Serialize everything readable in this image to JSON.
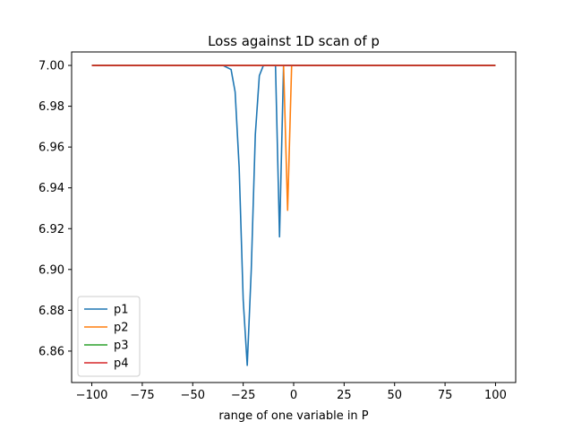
{
  "chart_data": {
    "type": "line",
    "title": "Loss against 1D scan of p",
    "xlabel": "range of one variable in P",
    "ylabel": "",
    "xlim": [
      -110,
      110
    ],
    "ylim": [
      6.8446,
      7.0066
    ],
    "xticks": [
      -100,
      -75,
      -50,
      -25,
      0,
      25,
      50,
      75,
      100
    ],
    "xtick_labels": [
      "−100",
      "−75",
      "−50",
      "−25",
      "0",
      "25",
      "50",
      "75",
      "100"
    ],
    "yticks": [
      6.86,
      6.88,
      6.9,
      6.92,
      6.94,
      6.96,
      6.98,
      7.0
    ],
    "ytick_labels": [
      "6.86",
      "6.88",
      "6.90",
      "6.92",
      "6.94",
      "6.96",
      "6.98",
      "7.00"
    ],
    "grid": false,
    "legend_position": "bottom-left",
    "series": [
      {
        "name": "p1",
        "color": "#1f77b4",
        "points": [
          [
            -100,
            7.0
          ],
          [
            -35,
            7.0
          ],
          [
            -31,
            6.998
          ],
          [
            -29,
            6.987
          ],
          [
            -27,
            6.95
          ],
          [
            -25,
            6.885
          ],
          [
            -23,
            6.853
          ],
          [
            -21,
            6.9
          ],
          [
            -19,
            6.966
          ],
          [
            -17,
            6.995
          ],
          [
            -15,
            7.0
          ],
          [
            -9,
            7.0
          ],
          [
            -7,
            6.916
          ],
          [
            -5,
            7.0
          ],
          [
            100,
            7.0
          ]
        ]
      },
      {
        "name": "p2",
        "color": "#ff7f0e",
        "points": [
          [
            -100,
            7.0
          ],
          [
            -5,
            7.0
          ],
          [
            -3,
            6.929
          ],
          [
            -1,
            7.0
          ],
          [
            100,
            7.0
          ]
        ]
      },
      {
        "name": "p3",
        "color": "#2ca02c",
        "points": [
          [
            -100,
            7.0
          ],
          [
            100,
            7.0
          ]
        ]
      },
      {
        "name": "p4",
        "color": "#d62728",
        "points": [
          [
            -100,
            7.0
          ],
          [
            100,
            7.0
          ]
        ]
      }
    ]
  }
}
